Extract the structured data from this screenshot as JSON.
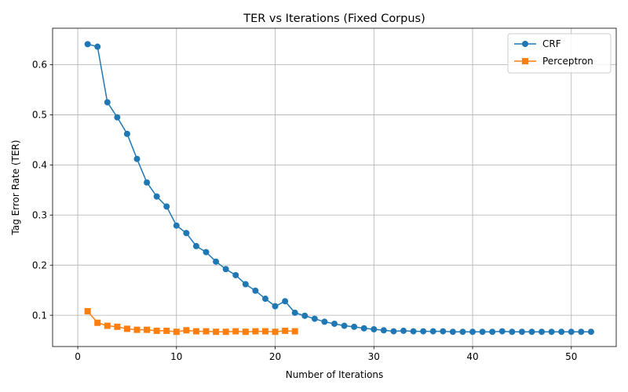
{
  "chart_data": {
    "type": "line",
    "title": "TER vs Iterations (Fixed Corpus)",
    "xlabel": "Number of Iterations",
    "ylabel": "Tag Error Rate (TER)",
    "xlim": [
      -2.55,
      54.55
    ],
    "ylim": [
      0.0376,
      0.6728
    ],
    "xticks": [
      0,
      10,
      20,
      30,
      40,
      50
    ],
    "xtick_labels": [
      "0",
      "10",
      "20",
      "30",
      "40",
      "50"
    ],
    "yticks": [
      0.1,
      0.2,
      0.3,
      0.4,
      0.5,
      0.6
    ],
    "ytick_labels": [
      "0.1",
      "0.2",
      "0.3",
      "0.4",
      "0.5",
      "0.6"
    ],
    "grid": true,
    "legend_position": "top-right",
    "series": [
      {
        "name": "CRF",
        "color": "#1f77b4",
        "marker": "circle",
        "x": [
          1,
          2,
          3,
          4,
          5,
          6,
          7,
          8,
          9,
          10,
          11,
          12,
          13,
          14,
          15,
          16,
          17,
          18,
          19,
          20,
          21,
          22,
          23,
          24,
          25,
          26,
          27,
          28,
          29,
          30,
          31,
          32,
          33,
          34,
          35,
          36,
          37,
          38,
          39,
          40,
          41,
          42,
          43,
          44,
          45,
          46,
          47,
          48,
          49,
          50,
          51,
          52
        ],
        "y": [
          0.641,
          0.636,
          0.525,
          0.495,
          0.462,
          0.412,
          0.365,
          0.337,
          0.317,
          0.279,
          0.264,
          0.238,
          0.226,
          0.207,
          0.192,
          0.18,
          0.162,
          0.149,
          0.133,
          0.118,
          0.128,
          0.105,
          0.099,
          0.093,
          0.087,
          0.083,
          0.079,
          0.077,
          0.074,
          0.072,
          0.07,
          0.068,
          0.069,
          0.068,
          0.068,
          0.068,
          0.068,
          0.067,
          0.067,
          0.067,
          0.067,
          0.067,
          0.068,
          0.067,
          0.067,
          0.067,
          0.067,
          0.067,
          0.067,
          0.067,
          0.067,
          0.067
        ]
      },
      {
        "name": "Perceptron",
        "color": "#ff7f0e",
        "marker": "square",
        "x": [
          1,
          2,
          3,
          4,
          5,
          6,
          7,
          8,
          9,
          10,
          11,
          12,
          13,
          14,
          15,
          16,
          17,
          18,
          19,
          20,
          21,
          22
        ],
        "y": [
          0.108,
          0.085,
          0.079,
          0.077,
          0.073,
          0.071,
          0.071,
          0.069,
          0.069,
          0.067,
          0.07,
          0.068,
          0.068,
          0.067,
          0.067,
          0.068,
          0.067,
          0.068,
          0.068,
          0.067,
          0.069,
          0.068
        ]
      }
    ]
  }
}
